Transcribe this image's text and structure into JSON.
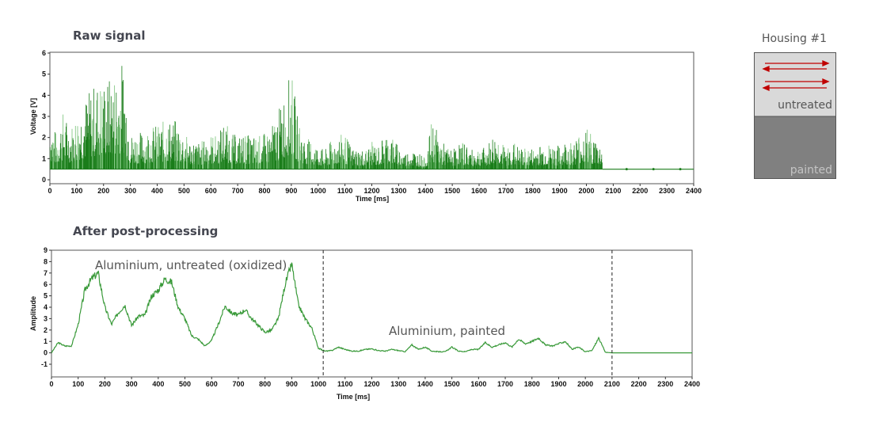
{
  "chart_data": [
    {
      "type": "line",
      "title": "Raw signal",
      "xlabel": "Time [ms]",
      "ylabel": "Voltage [V]",
      "xlim": [
        0,
        2400
      ],
      "ylim": [
        0,
        6
      ],
      "xticks": [
        "0",
        "100",
        "200",
        "300",
        "400",
        "500",
        "600",
        "700",
        "800",
        "900",
        "1000",
        "1100",
        "1200",
        "1300",
        "1400",
        "1500",
        "1600",
        "1700",
        "1800",
        "1900",
        "2000",
        "2100",
        "2200",
        "2300",
        "2400"
      ],
      "yticks": [
        "0",
        "1",
        "2",
        "3",
        "4",
        "5",
        "6"
      ],
      "baseline": 0.5,
      "envelope_x_step": 25,
      "peak_envelope": [
        3.0,
        2.2,
        3.3,
        2.5,
        3.2,
        3.8,
        4.3,
        4.7,
        4.8,
        4.9,
        5.3,
        5.8,
        2.2,
        2.3,
        2.3,
        2.6,
        2.6,
        2.8,
        2.9,
        2.8,
        2.2,
        1.9,
        1.8,
        1.9,
        2.2,
        2.1,
        2.9,
        2.2,
        2.1,
        2.2,
        2.1,
        2.1,
        2.2,
        2.5,
        3.2,
        4.2,
        5.2,
        2.9,
        2.0,
        1.9,
        1.6,
        1.4,
        1.9,
        2.1,
        2.2,
        1.5,
        1.5,
        1.4,
        1.8,
        1.6,
        2.3,
        2.1,
        1.6,
        1.3,
        1.5,
        1.3,
        1.0,
        2.9,
        2.1,
        1.6,
        1.4,
        1.8,
        1.8,
        1.4,
        1.6,
        1.5,
        2.1,
        2.1,
        1.4,
        1.9,
        1.5,
        1.5,
        1.5,
        1.7,
        1.7,
        1.7,
        1.6,
        1.9,
        1.8,
        2.3,
        2.5,
        2.1,
        1.7
      ],
      "signal_end_ms": 2060,
      "after_end_level": 0.5,
      "colors": {
        "dark": "#1a7d1a",
        "light": "#86c986"
      }
    },
    {
      "type": "line",
      "title": "After post-processing",
      "xlabel": "Time [ms]",
      "ylabel": "Amplitude",
      "xlim": [
        0,
        2400
      ],
      "ylim": [
        -1,
        9
      ],
      "xticks": [
        "0",
        "100",
        "200",
        "300",
        "400",
        "500",
        "600",
        "700",
        "800",
        "900",
        "1000",
        "1100",
        "1200",
        "1300",
        "1400",
        "1500",
        "1600",
        "1700",
        "1800",
        "1900",
        "2000",
        "2100",
        "2200",
        "2300",
        "2400"
      ],
      "yticks": [
        "-1",
        "0",
        "1",
        "2",
        "3",
        "4",
        "5",
        "6",
        "7",
        "8",
        "9"
      ],
      "x_step": 25,
      "values": [
        0,
        0.9,
        0.6,
        0.6,
        2.5,
        5.5,
        6.5,
        7.0,
        4.0,
        2.5,
        3.5,
        4.2,
        2.4,
        3.2,
        3.3,
        5.0,
        5.5,
        6.5,
        6.2,
        4.0,
        3.0,
        1.5,
        1.2,
        0.6,
        1.1,
        2.5,
        4.1,
        3.5,
        3.3,
        3.8,
        3.0,
        2.4,
        1.8,
        2.0,
        3.0,
        6.0,
        7.8,
        4.2,
        3.0,
        2.2,
        0.4,
        0.15,
        0.2,
        0.5,
        0.3,
        0.15,
        0.15,
        0.3,
        0.35,
        0.2,
        0.15,
        0.3,
        0.2,
        0.1,
        0.7,
        0.3,
        0.5,
        0.15,
        0.1,
        0.1,
        0.5,
        0.15,
        0.1,
        0.3,
        0.3,
        0.9,
        0.5,
        0.7,
        0.9,
        0.5,
        1.2,
        0.8,
        1.0,
        1.3,
        0.7,
        0.6,
        0.8,
        1.0,
        0.3,
        0.5,
        0.1,
        0.2,
        1.3,
        0.05,
        0,
        0,
        0,
        0,
        0,
        0,
        0,
        0,
        0,
        0,
        0,
        0,
        0
      ],
      "color": "#3a9a3a",
      "boundaries_ms": [
        1018,
        2100
      ],
      "annotations": [
        "Aluminium, untreated (oxidized)",
        "Aluminium, painted"
      ]
    }
  ],
  "housing": {
    "title": "Housing #1",
    "top_label": "untreated",
    "bottom_label": "painted",
    "colors": {
      "top": "#d9d9d9",
      "bottom": "#808080",
      "arrow": "#c00000"
    }
  }
}
